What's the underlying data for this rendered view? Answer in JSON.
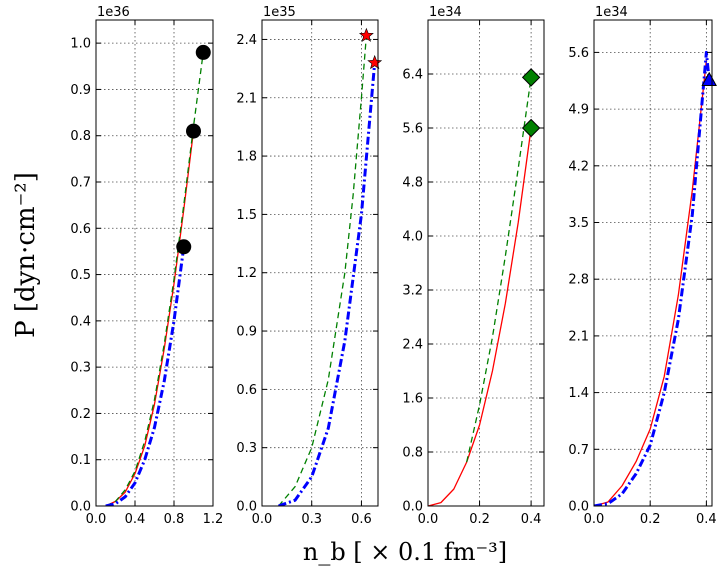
{
  "figure": {
    "ylabel": "P  [dyn·cm⁻²]",
    "xlabel": "n_b  [ × 0.1 fm⁻³]"
  },
  "chart_data": [
    {
      "type": "line",
      "offset_text": "1e36",
      "xlim": [
        0.0,
        1.2
      ],
      "ylim": [
        0.0,
        1.05
      ],
      "xticks": [
        0.0,
        0.4,
        0.8,
        1.2
      ],
      "xtick_labels": [
        "0.0",
        "0.4",
        "0.8",
        "1.2"
      ],
      "yticks": [
        0.0,
        0.1,
        0.2,
        0.3,
        0.4,
        0.5,
        0.6,
        0.7,
        0.8,
        0.9,
        1.0
      ],
      "ytick_labels": [
        "0.0",
        "0.1",
        "0.2",
        "0.3",
        "0.4",
        "0.5",
        "0.6",
        "0.7",
        "0.8",
        "0.9",
        "1.0"
      ],
      "grid": true,
      "marker": "circle",
      "marker_color": "#000000",
      "series": [
        {
          "style": "solid",
          "color": "#ff0000",
          "x": [
            0.1,
            0.2,
            0.3,
            0.4,
            0.5,
            0.6,
            0.7,
            0.8,
            0.9,
            1.0
          ],
          "y": [
            0.0,
            0.01,
            0.03,
            0.07,
            0.13,
            0.22,
            0.34,
            0.48,
            0.64,
            0.81
          ],
          "end_marker": true
        },
        {
          "style": "dashed",
          "color": "#008000",
          "x": [
            0.1,
            0.2,
            0.3,
            0.4,
            0.5,
            0.6,
            0.7,
            0.8,
            0.9,
            1.0,
            1.1
          ],
          "y": [
            0.0,
            0.01,
            0.035,
            0.075,
            0.14,
            0.23,
            0.35,
            0.49,
            0.65,
            0.82,
            0.98
          ],
          "end_marker": true
        },
        {
          "style": "dashdot",
          "color": "#0000ff",
          "x": [
            0.1,
            0.2,
            0.3,
            0.4,
            0.5,
            0.6,
            0.7,
            0.8,
            0.9
          ],
          "y": [
            0.0,
            0.005,
            0.02,
            0.05,
            0.1,
            0.17,
            0.27,
            0.4,
            0.56
          ],
          "end_marker": true
        }
      ]
    },
    {
      "type": "line",
      "offset_text": "1e35",
      "xlim": [
        0.0,
        0.7
      ],
      "ylim": [
        0.0,
        2.5
      ],
      "xticks": [
        0.0,
        0.3,
        0.6
      ],
      "xtick_labels": [
        "0.0",
        "0.3",
        "0.6"
      ],
      "yticks": [
        0.0,
        0.3,
        0.6,
        0.9,
        1.2,
        1.5,
        1.8,
        2.1,
        2.4
      ],
      "ytick_labels": [
        "0.0",
        "0.3",
        "0.6",
        "0.9",
        "1.2",
        "1.5",
        "1.8",
        "2.1",
        "2.4"
      ],
      "grid": true,
      "marker": "star",
      "marker_color": "#ff0000",
      "series": [
        {
          "style": "dashed",
          "color": "#008000",
          "x": [
            0.1,
            0.2,
            0.3,
            0.4,
            0.5,
            0.55,
            0.6,
            0.63
          ],
          "y": [
            0.0,
            0.1,
            0.3,
            0.65,
            1.2,
            1.6,
            2.1,
            2.42
          ],
          "end_marker": true
        },
        {
          "style": "dashdot",
          "color": "#0000ff",
          "x": [
            0.1,
            0.2,
            0.3,
            0.4,
            0.5,
            0.6,
            0.68
          ],
          "y": [
            0.0,
            0.03,
            0.15,
            0.4,
            0.85,
            1.5,
            2.28
          ],
          "end_marker": true
        }
      ]
    },
    {
      "type": "line",
      "offset_text": "1e34",
      "xlim": [
        0.0,
        0.45
      ],
      "ylim": [
        0.0,
        7.2
      ],
      "xticks": [
        0.0,
        0.2,
        0.4
      ],
      "xtick_labels": [
        "0.0",
        "0.2",
        "0.4"
      ],
      "yticks": [
        0.0,
        0.8,
        1.6,
        2.4,
        3.2,
        4.0,
        4.8,
        5.6,
        6.4
      ],
      "ytick_labels": [
        "0.0",
        "0.8",
        "1.6",
        "2.4",
        "3.2",
        "4.0",
        "4.8",
        "5.6",
        "6.4"
      ],
      "grid": true,
      "marker": "diamond",
      "marker_color": "#008000",
      "series": [
        {
          "style": "solid",
          "color": "#ff0000",
          "x": [
            0.0,
            0.05,
            0.1,
            0.15,
            0.2,
            0.25,
            0.3,
            0.35,
            0.4
          ],
          "y": [
            0.0,
            0.05,
            0.25,
            0.65,
            1.2,
            2.0,
            3.0,
            4.2,
            5.6
          ],
          "end_marker": true
        },
        {
          "style": "dashed",
          "color": "#008000",
          "x": [
            0.15,
            0.2,
            0.25,
            0.3,
            0.35,
            0.4
          ],
          "y": [
            0.65,
            1.5,
            2.5,
            3.7,
            5.0,
            6.35
          ],
          "end_marker": true
        }
      ]
    },
    {
      "type": "line",
      "offset_text": "1e34",
      "xlim": [
        0.0,
        0.42
      ],
      "ylim": [
        0.0,
        6.0
      ],
      "xticks": [
        0.0,
        0.2,
        0.4
      ],
      "xtick_labels": [
        "0.0",
        "0.2",
        "0.4"
      ],
      "yticks": [
        0.0,
        0.7,
        1.4,
        2.1,
        2.8,
        3.5,
        4.2,
        4.9,
        5.6
      ],
      "ytick_labels": [
        "0.0",
        "0.7",
        "1.4",
        "2.1",
        "2.8",
        "3.5",
        "4.2",
        "4.9",
        "5.6"
      ],
      "grid": true,
      "marker": "triangle",
      "marker_color": "#0000ff",
      "series": [
        {
          "style": "solid",
          "color": "#ff0000",
          "x": [
            0.0,
            0.05,
            0.1,
            0.15,
            0.2,
            0.25,
            0.3,
            0.35,
            0.4
          ],
          "y": [
            0.0,
            0.05,
            0.25,
            0.55,
            0.95,
            1.6,
            2.6,
            3.9,
            5.5
          ],
          "end_marker": false
        },
        {
          "style": "dashdot",
          "color": "#0000ff",
          "x": [
            0.0,
            0.05,
            0.1,
            0.15,
            0.2,
            0.25,
            0.3,
            0.35,
            0.4,
            0.41
          ],
          "y": [
            0.0,
            0.03,
            0.15,
            0.4,
            0.75,
            1.4,
            2.3,
            3.6,
            5.6,
            5.25
          ],
          "end_marker": true
        }
      ]
    }
  ]
}
